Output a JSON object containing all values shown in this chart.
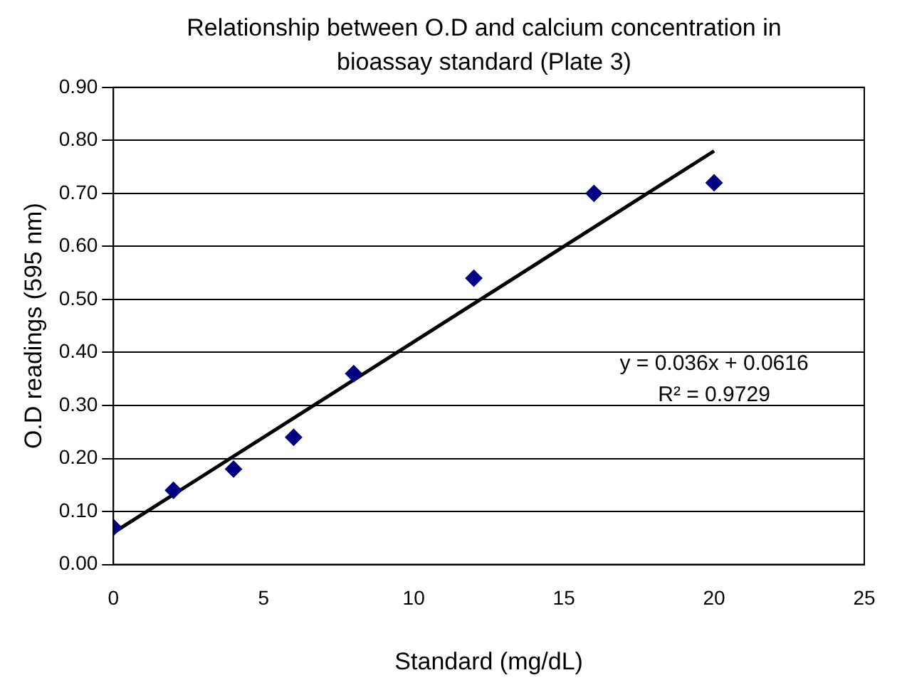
{
  "chart_data": {
    "type": "scatter",
    "title": "Relationship between O.D and calcium concentration in bioassay standard (Plate 3)",
    "xlabel": "Standard (mg/dL)",
    "ylabel": "O.D readings (595 nm)",
    "x": [
      0,
      2,
      4,
      6,
      8,
      12,
      16,
      20
    ],
    "series": [
      {
        "type": "scatter",
        "color": "#000080",
        "marker": "diamond",
        "values": [
          0.07,
          0.14,
          0.18,
          0.24,
          0.36,
          0.54,
          0.7,
          0.72
        ]
      },
      {
        "type": "line",
        "color": "#000000",
        "marker": "none",
        "line_style": "solid",
        "x": [
          0,
          20
        ],
        "values": [
          0.06,
          0.78
        ]
      }
    ],
    "xlim": [
      0,
      25
    ],
    "xticks": [
      0,
      5,
      10,
      15,
      20,
      25
    ],
    "ylim": [
      0,
      0.9
    ],
    "yticks": [
      {
        "value": 0,
        "label": "0.00"
      },
      {
        "value": 0.1,
        "label": "0.10"
      },
      {
        "value": 0.2,
        "label": "0.20"
      },
      {
        "value": 0.3,
        "label": "0.30"
      },
      {
        "value": 0.4,
        "label": "0.40"
      },
      {
        "value": 0.5,
        "label": "0.50"
      },
      {
        "value": 0.6,
        "label": "0.60"
      },
      {
        "value": 0.7,
        "label": "0.70"
      },
      {
        "value": 0.8,
        "label": "0.80"
      },
      {
        "value": 0.9,
        "label": "0.90"
      }
    ],
    "grid": "y",
    "legend": false,
    "annotations": [
      "y = 0.036x + 0.0616",
      "R² = 0.9729"
    ]
  }
}
